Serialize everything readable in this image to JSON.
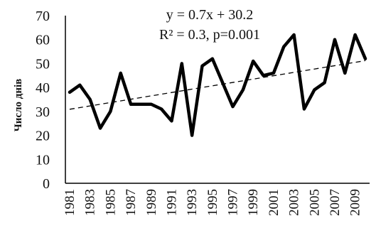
{
  "chart_data": {
    "type": "line",
    "title": "",
    "xlabel": "",
    "ylabel": "Число днів",
    "ylim": [
      0,
      70
    ],
    "yticks": [
      0,
      10,
      20,
      30,
      40,
      50,
      60,
      70
    ],
    "xtick_labels": [
      "1981",
      "1983",
      "1985",
      "1987",
      "1989",
      "1991",
      "1993",
      "1995",
      "1997",
      "1999",
      "2001",
      "2003",
      "2005",
      "2007",
      "2009"
    ],
    "annotations": [
      "y = 0.7x + 30.2",
      "R² = 0.3, p=0.001"
    ],
    "grid": false,
    "legend": "none",
    "series": [
      {
        "x": [
          1981,
          1982,
          1983,
          1984,
          1985,
          1986,
          1987,
          1988,
          1989,
          1990,
          1991,
          1992,
          1993,
          1994,
          1995,
          1996,
          1997,
          1998,
          1999,
          2000,
          2001,
          2002,
          2003,
          2004,
          2005,
          2006,
          2007,
          2008,
          2009,
          2010
        ],
        "values": [
          38,
          41,
          35,
          23,
          30,
          46,
          33,
          33,
          33,
          31,
          26,
          50,
          20,
          49,
          52,
          42,
          32,
          39,
          51,
          45,
          46,
          57,
          62,
          31,
          39,
          42,
          60,
          46,
          62,
          52
        ],
        "color": "#000000",
        "style": "solid"
      }
    ],
    "trendline": {
      "slope": 0.7,
      "intercept": 30.2,
      "style": "dashed",
      "color": "#000000"
    }
  }
}
